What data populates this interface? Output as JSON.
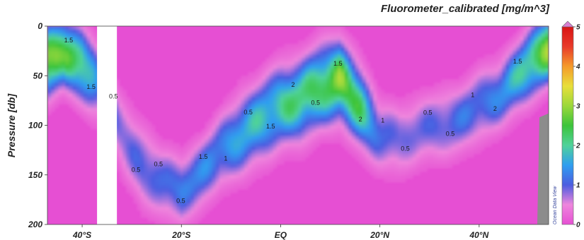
{
  "chart_data": {
    "type": "heatmap",
    "title": "Fluorometer_calibrated [mg/m^3]",
    "ylabel": "Pressure [db]",
    "xlabel": "",
    "x_ticks": [
      "40°S",
      "20°S",
      "EQ",
      "20°N",
      "40°N"
    ],
    "x_tick_lat": [
      -40,
      -20,
      0,
      20,
      40
    ],
    "xlim": [
      -47,
      54
    ],
    "y_ticks": [
      0,
      50,
      100,
      150,
      200
    ],
    "ylim": [
      0,
      200
    ],
    "y_inverted": true,
    "colorbar": {
      "min": 0,
      "max": 5,
      "ticks": [
        0,
        1,
        2,
        3,
        4,
        5
      ]
    },
    "colormap": [
      "#e64fd3",
      "#ee86dd",
      "#4b5de0",
      "#2f9ef0",
      "#4fd29a",
      "#3cc43b",
      "#9bd83a",
      "#e8df3a",
      "#f59a2a",
      "#e83a2a",
      "#d91414"
    ],
    "deep_chlorophyll_max": {
      "lat": [
        -47,
        -44,
        -40,
        -36,
        -32,
        -28,
        -24,
        -20,
        -16,
        -12,
        -8,
        -4,
        0,
        4,
        8,
        12,
        16,
        20,
        24,
        28,
        32,
        36,
        40,
        44,
        48,
        52,
        54
      ],
      "pressure": [
        35,
        25,
        40,
        60,
        110,
        140,
        158,
        165,
        150,
        125,
        110,
        95,
        80,
        75,
        60,
        55,
        80,
        110,
        115,
        105,
        100,
        95,
        80,
        70,
        50,
        30,
        20
      ],
      "peak_value": [
        3.2,
        2.6,
        2.4,
        0.9,
        0.8,
        1.0,
        1.1,
        1.2,
        1.3,
        1.4,
        1.6,
        1.8,
        2.0,
        2.2,
        2.4,
        2.8,
        2.2,
        1.1,
        0.9,
        0.9,
        1.0,
        1.1,
        1.2,
        1.3,
        1.8,
        2.6,
        3.2
      ],
      "thickness_db": [
        30,
        30,
        30,
        35,
        35,
        35,
        30,
        30,
        30,
        30,
        35,
        35,
        35,
        35,
        35,
        35,
        35,
        30,
        30,
        30,
        30,
        30,
        30,
        30,
        30,
        30,
        30
      ]
    },
    "data_gap_lat": [
      -37,
      -33
    ],
    "contour_labels": [
      "1.5",
      "1.5",
      "0.5",
      "0.5",
      "0.5",
      "0.5",
      "1.5",
      "1",
      "0.5",
      "1.5",
      "2",
      "0.5",
      "1.5",
      "2",
      "1",
      "0.5",
      "0.5",
      "0.5",
      "1",
      "2",
      "1.5"
    ],
    "watermark": "Ocean Data View"
  }
}
